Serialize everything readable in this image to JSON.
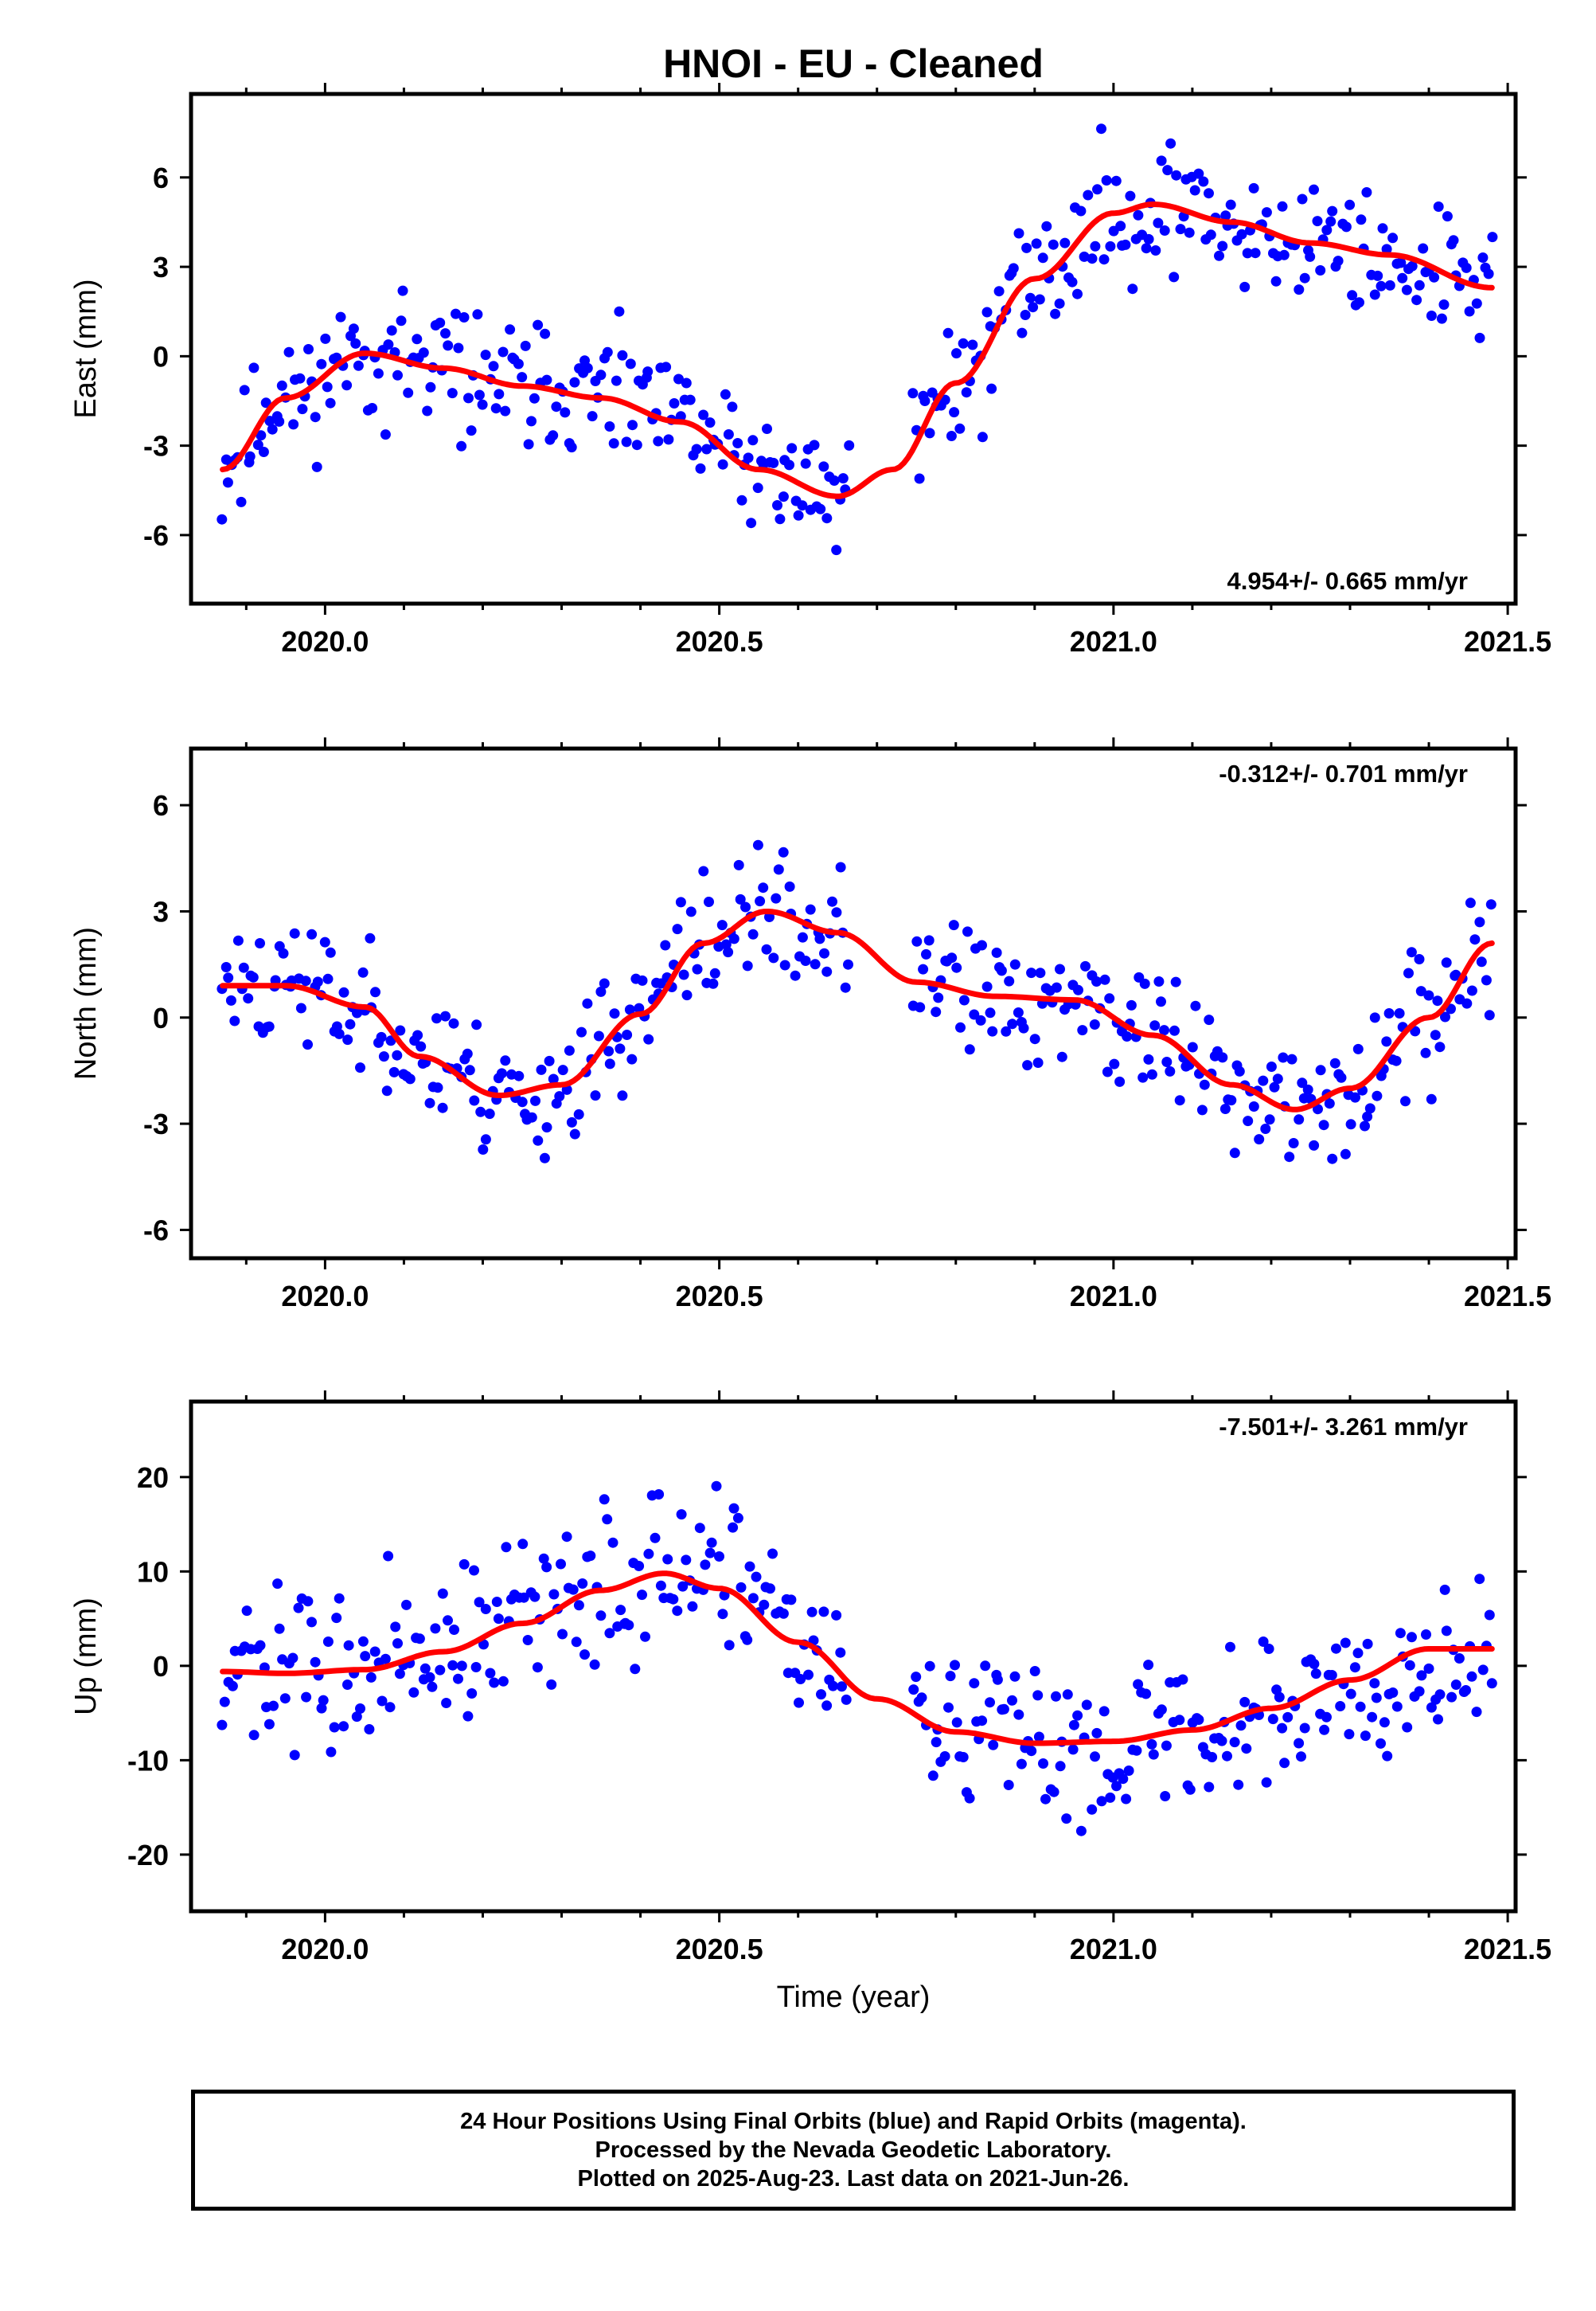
{
  "title": "HNOI  - EU - Cleaned",
  "xlabel": "Time (year)",
  "footer": {
    "line1": "24 Hour Positions Using Final Orbits (blue) and Rapid Orbits (magenta).",
    "line2": "Processed by the Nevada Geodetic Laboratory.",
    "line3": "Plotted on 2025-Aug-23. Last data on 2021-Jun-26."
  },
  "colors": {
    "points": "#0000ff",
    "fit": "#ff0000",
    "frame": "#000000"
  },
  "chart_data": [
    {
      "type": "scatter",
      "ylabel": "East (mm)",
      "rate_label": "4.954+/- 0.665 mm/yr",
      "rate_position": "bottom-right",
      "xlim": [
        2019.83,
        2021.51
      ],
      "ylim": [
        -8.3,
        8.8
      ],
      "xticks": [
        "2020.0",
        "2020.5",
        "2021.0",
        "2021.5"
      ],
      "xtick_values": [
        2020.0,
        2020.5,
        2021.0,
        2021.5
      ],
      "yticks": [
        "-6",
        "-3",
        "0",
        "3",
        "6"
      ],
      "ytick_values": [
        -6,
        -3,
        0,
        3,
        6
      ],
      "fit": {
        "x": [
          2019.87,
          2019.95,
          2020.05,
          2020.15,
          2020.25,
          2020.35,
          2020.45,
          2020.55,
          2020.65,
          2020.72,
          2020.8,
          2020.9,
          2021.0,
          2021.05,
          2021.15,
          2021.25,
          2021.35,
          2021.48
        ],
        "y": [
          -3.8,
          -1.4,
          0.1,
          -0.4,
          -1.0,
          -1.4,
          -2.2,
          -3.8,
          -4.7,
          -3.8,
          -0.9,
          2.6,
          4.8,
          5.1,
          4.5,
          3.8,
          3.4,
          2.3
        ]
      },
      "scatter": {
        "anchors_x": [
          2019.87,
          2019.95,
          2020.05,
          2020.15,
          2020.25,
          2020.35,
          2020.45,
          2020.55,
          2020.65,
          2020.72,
          2020.8,
          2020.9,
          2021.0,
          2021.05,
          2021.15,
          2021.25,
          2021.35,
          2021.48
        ],
        "anchors_y": [
          -3.8,
          -1.4,
          0.1,
          -0.4,
          -1.0,
          -1.4,
          -2.2,
          -3.8,
          -4.7,
          -3.8,
          -0.9,
          2.6,
          4.8,
          5.1,
          4.5,
          3.8,
          3.4,
          2.3
        ],
        "spread": 1.5,
        "gap": [
          2020.665,
          2020.745
        ],
        "count": 400,
        "seed": 11
      }
    },
    {
      "type": "scatter",
      "ylabel": "North (mm)",
      "rate_label": "-0.312+/- 0.701 mm/yr",
      "rate_position": "top-right",
      "xlim": [
        2019.83,
        2021.51
      ],
      "ylim": [
        -6.8,
        7.6
      ],
      "xticks": [
        "2020.0",
        "2020.5",
        "2021.0",
        "2021.5"
      ],
      "xtick_values": [
        2020.0,
        2020.5,
        2021.0,
        2021.5
      ],
      "yticks": [
        "-6",
        "-3",
        "0",
        "3",
        "6"
      ],
      "ytick_values": [
        -6,
        -3,
        0,
        3,
        6
      ],
      "fit": {
        "x": [
          2019.87,
          2019.95,
          2020.05,
          2020.12,
          2020.22,
          2020.3,
          2020.4,
          2020.48,
          2020.56,
          2020.65,
          2020.75,
          2020.85,
          2020.95,
          2021.05,
          2021.15,
          2021.23,
          2021.3,
          2021.4,
          2021.48
        ],
        "y": [
          0.9,
          0.9,
          0.3,
          -1.1,
          -2.2,
          -1.9,
          0.1,
          2.1,
          3.0,
          2.4,
          1.0,
          0.6,
          0.5,
          -0.5,
          -1.9,
          -2.6,
          -2.0,
          0.0,
          2.1
        ]
      },
      "scatter": {
        "anchors_x": [
          2019.87,
          2019.95,
          2020.05,
          2020.12,
          2020.22,
          2020.3,
          2020.4,
          2020.48,
          2020.56,
          2020.65,
          2020.75,
          2020.85,
          2020.95,
          2021.05,
          2021.15,
          2021.23,
          2021.3,
          2021.4,
          2021.48
        ],
        "anchors_y": [
          0.9,
          0.9,
          0.3,
          -1.1,
          -2.2,
          -1.9,
          0.1,
          2.1,
          3.0,
          2.4,
          1.0,
          0.6,
          0.5,
          -0.5,
          -1.9,
          -2.6,
          -2.0,
          0.0,
          2.1
        ],
        "spread": 1.3,
        "gap": [
          2020.665,
          2020.745
        ],
        "count": 400,
        "seed": 23
      }
    },
    {
      "type": "scatter",
      "ylabel": "Up (mm)",
      "rate_label": "-7.501+/- 3.261 mm/yr",
      "rate_position": "top-right",
      "xlim": [
        2019.83,
        2021.51
      ],
      "ylim": [
        -26,
        28
      ],
      "xticks": [
        "2020.0",
        "2020.5",
        "2021.0",
        "2021.5"
      ],
      "xtick_values": [
        2020.0,
        2020.5,
        2021.0,
        2021.5
      ],
      "yticks": [
        "-20",
        "-10",
        "0",
        "10",
        "20"
      ],
      "ytick_values": [
        -20,
        -10,
        0,
        10,
        20
      ],
      "fit": {
        "x": [
          2019.87,
          2019.95,
          2020.05,
          2020.15,
          2020.25,
          2020.35,
          2020.43,
          2020.5,
          2020.6,
          2020.7,
          2020.8,
          2020.9,
          2021.0,
          2021.1,
          2021.2,
          2021.3,
          2021.4,
          2021.48
        ],
        "y": [
          -0.6,
          -0.8,
          -0.4,
          1.5,
          4.5,
          8.0,
          9.8,
          8.2,
          2.5,
          -3.5,
          -7.0,
          -8.2,
          -8.0,
          -6.8,
          -4.5,
          -1.5,
          1.8,
          1.8
        ]
      },
      "scatter": {
        "anchors_x": [
          2019.87,
          2019.95,
          2020.05,
          2020.15,
          2020.25,
          2020.35,
          2020.43,
          2020.5,
          2020.6,
          2020.7,
          2020.8,
          2020.9,
          2021.0,
          2021.1,
          2021.2,
          2021.3,
          2021.4,
          2021.48
        ],
        "anchors_y": [
          -0.6,
          -0.8,
          -0.4,
          1.5,
          4.5,
          8.0,
          9.8,
          8.2,
          2.5,
          -3.5,
          -7.0,
          -8.2,
          -8.0,
          -6.8,
          -4.5,
          -1.5,
          1.8,
          1.8
        ],
        "spread": 6.0,
        "gap": [
          2020.665,
          2020.745
        ],
        "count": 400,
        "seed": 37
      }
    }
  ]
}
